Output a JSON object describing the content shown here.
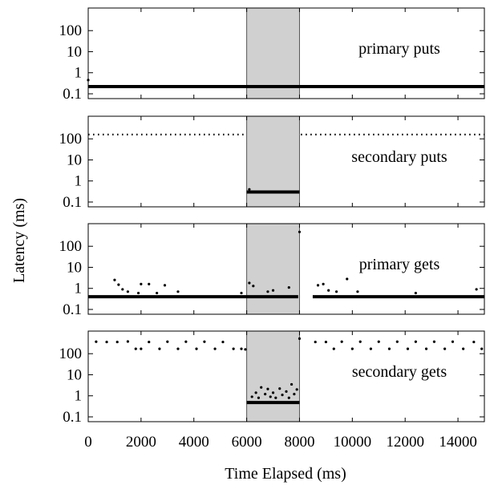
{
  "chart_data": {
    "type": "scatter",
    "xlabel": "Time Elapsed (ms)",
    "ylabel": "Latency (ms)",
    "xlim": [
      0,
      15000
    ],
    "ylim": [
      0.1,
      700
    ],
    "yscale": "log",
    "x_ticks": [
      {
        "value": 0,
        "label": "0"
      },
      {
        "value": 2000,
        "label": "2000"
      },
      {
        "value": 4000,
        "label": "4000"
      },
      {
        "value": 6000,
        "label": "6000"
      },
      {
        "value": 8000,
        "label": "8000"
      },
      {
        "value": 10000,
        "label": "10000"
      },
      {
        "value": 12000,
        "label": "12000"
      },
      {
        "value": 14000,
        "label": "14000"
      }
    ],
    "y_ticks": [
      {
        "value": 0.1,
        "label": "0.1"
      },
      {
        "value": 1,
        "label": "1"
      },
      {
        "value": 10,
        "label": "10"
      },
      {
        "value": 100,
        "label": "100"
      }
    ],
    "shaded_region": {
      "x_start": 6000,
      "x_end": 8000,
      "color": "#d0d0d0"
    },
    "marker_color": "#000000",
    "panels": [
      {
        "name": "primary puts",
        "label": "primary puts",
        "segments": [
          {
            "x_start": 0,
            "x_end": 15000,
            "value": 0.22
          }
        ],
        "points": [
          {
            "x": 0,
            "y": 0.45
          }
        ]
      },
      {
        "name": "secondary puts",
        "label": "secondary puts",
        "segments": [
          {
            "x_start": 6000,
            "x_end": 8000,
            "value": 0.3
          }
        ],
        "dotted_segments": [
          {
            "x_start": 0,
            "x_end": 5950,
            "value": 160
          },
          {
            "x_start": 8050,
            "x_end": 15000,
            "value": 160
          }
        ],
        "points": [
          {
            "x": 6100,
            "y": 0.4
          }
        ]
      },
      {
        "name": "primary gets",
        "label": "primary gets",
        "segments": [
          {
            "x_start": 0,
            "x_end": 7950,
            "value": 0.4
          },
          {
            "x_start": 8500,
            "x_end": 15000,
            "value": 0.4
          }
        ],
        "points": [
          {
            "x": 1000,
            "y": 2.5
          },
          {
            "x": 1150,
            "y": 1.5
          },
          {
            "x": 1300,
            "y": 0.9
          },
          {
            "x": 1500,
            "y": 0.7
          },
          {
            "x": 1900,
            "y": 0.6
          },
          {
            "x": 2000,
            "y": 1.6
          },
          {
            "x": 2300,
            "y": 1.6
          },
          {
            "x": 2600,
            "y": 0.6
          },
          {
            "x": 2900,
            "y": 1.4
          },
          {
            "x": 3400,
            "y": 0.7
          },
          {
            "x": 5800,
            "y": 0.6
          },
          {
            "x": 6100,
            "y": 1.8
          },
          {
            "x": 6250,
            "y": 1.3
          },
          {
            "x": 6800,
            "y": 0.7
          },
          {
            "x": 7000,
            "y": 0.8
          },
          {
            "x": 7600,
            "y": 1.1
          },
          {
            "x": 8000,
            "y": 480
          },
          {
            "x": 8700,
            "y": 1.4
          },
          {
            "x": 8900,
            "y": 1.6
          },
          {
            "x": 9100,
            "y": 0.8
          },
          {
            "x": 9400,
            "y": 0.7
          },
          {
            "x": 9800,
            "y": 2.8
          },
          {
            "x": 10200,
            "y": 0.7
          },
          {
            "x": 12400,
            "y": 0.6
          },
          {
            "x": 14700,
            "y": 0.9
          }
        ]
      },
      {
        "name": "secondary gets",
        "label": "secondary gets",
        "segments": [
          {
            "x_start": 6000,
            "x_end": 8000,
            "value": 0.48
          }
        ],
        "points": [
          {
            "x": 300,
            "y": 370
          },
          {
            "x": 700,
            "y": 360
          },
          {
            "x": 1100,
            "y": 360
          },
          {
            "x": 1500,
            "y": 380
          },
          {
            "x": 1800,
            "y": 170
          },
          {
            "x": 2000,
            "y": 170
          },
          {
            "x": 2300,
            "y": 360
          },
          {
            "x": 2700,
            "y": 170
          },
          {
            "x": 3000,
            "y": 370
          },
          {
            "x": 3400,
            "y": 170
          },
          {
            "x": 3700,
            "y": 370
          },
          {
            "x": 4100,
            "y": 170
          },
          {
            "x": 4400,
            "y": 370
          },
          {
            "x": 4800,
            "y": 170
          },
          {
            "x": 5100,
            "y": 360
          },
          {
            "x": 5500,
            "y": 170
          },
          {
            "x": 5800,
            "y": 170
          },
          {
            "x": 5950,
            "y": 160
          },
          {
            "x": 6100,
            "y": 0.5
          },
          {
            "x": 6200,
            "y": 0.9
          },
          {
            "x": 6350,
            "y": 1.4
          },
          {
            "x": 6450,
            "y": 0.8
          },
          {
            "x": 6550,
            "y": 2.5
          },
          {
            "x": 6700,
            "y": 1.2
          },
          {
            "x": 6800,
            "y": 2.1
          },
          {
            "x": 6900,
            "y": 0.9
          },
          {
            "x": 7000,
            "y": 1.4
          },
          {
            "x": 7100,
            "y": 0.8
          },
          {
            "x": 7250,
            "y": 2.2
          },
          {
            "x": 7350,
            "y": 1.1
          },
          {
            "x": 7500,
            "y": 1.6
          },
          {
            "x": 7600,
            "y": 0.8
          },
          {
            "x": 7700,
            "y": 3.5
          },
          {
            "x": 7800,
            "y": 1.2
          },
          {
            "x": 7900,
            "y": 2.0
          },
          {
            "x": 8000,
            "y": 520
          },
          {
            "x": 8600,
            "y": 360
          },
          {
            "x": 9000,
            "y": 360
          },
          {
            "x": 9300,
            "y": 170
          },
          {
            "x": 9600,
            "y": 370
          },
          {
            "x": 10000,
            "y": 170
          },
          {
            "x": 10300,
            "y": 370
          },
          {
            "x": 10700,
            "y": 170
          },
          {
            "x": 11000,
            "y": 370
          },
          {
            "x": 11400,
            "y": 170
          },
          {
            "x": 11700,
            "y": 370
          },
          {
            "x": 12100,
            "y": 170
          },
          {
            "x": 12400,
            "y": 370
          },
          {
            "x": 12800,
            "y": 170
          },
          {
            "x": 13100,
            "y": 370
          },
          {
            "x": 13500,
            "y": 170
          },
          {
            "x": 13800,
            "y": 370
          },
          {
            "x": 14200,
            "y": 170
          },
          {
            "x": 14600,
            "y": 360
          },
          {
            "x": 14900,
            "y": 170
          }
        ]
      }
    ]
  }
}
